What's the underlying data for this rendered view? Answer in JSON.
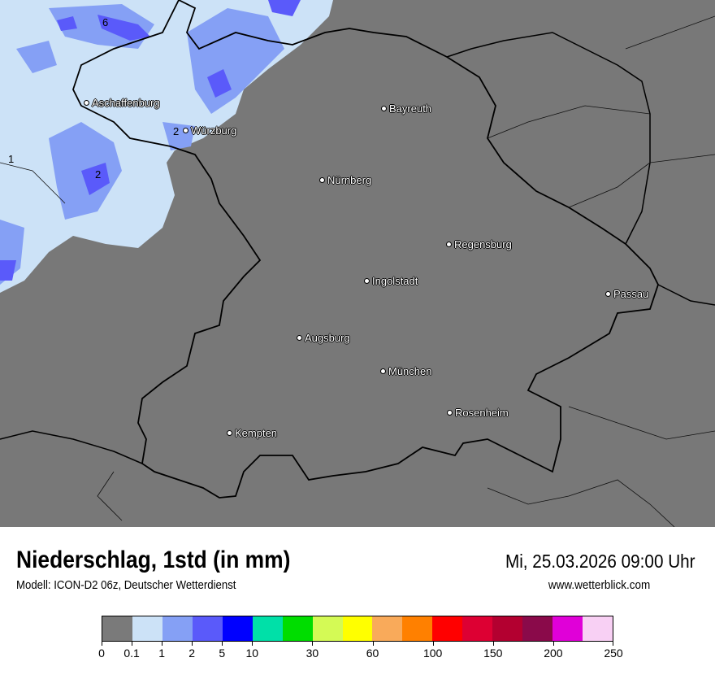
{
  "map": {
    "background_color": "#787878",
    "cities": [
      {
        "name": "Aschaffenburg"
      },
      {
        "name": "Bayreuth"
      },
      {
        "name": "Würzburg"
      },
      {
        "name": "Nürnberg"
      },
      {
        "name": "Regensburg"
      },
      {
        "name": "Ingolstadt"
      },
      {
        "name": "Passau"
      },
      {
        "name": "Augsburg"
      },
      {
        "name": "München"
      },
      {
        "name": "Rosenheim"
      },
      {
        "name": "Kempten"
      }
    ],
    "contour_labels": [
      "6",
      "2",
      "2",
      "1"
    ]
  },
  "header": {
    "title": "Niederschlag, 1std (in mm)",
    "subtitle": "Modell: ICON-D2 06z, Deutscher Wetterdienst",
    "datetime": "Mi, 25.03.2026 09:00 Uhr",
    "website": "www.wetterblick.com"
  },
  "legend": {
    "colors": [
      "#7a7a7a",
      "#cce2f7",
      "#85a0f5",
      "#5a5afa",
      "#0000ff",
      "#00e0a8",
      "#00dd00",
      "#d4fa55",
      "#ffff00",
      "#f9aa5a",
      "#ff8000",
      "#ff0000",
      "#dd0033",
      "#b30030",
      "#8a0a4a",
      "#e000d8",
      "#f8d0f4"
    ],
    "tick_labels": [
      "0",
      "0.1",
      "1",
      "2",
      "5",
      "10",
      "30",
      "60",
      "100",
      "150",
      "200",
      "250"
    ]
  }
}
